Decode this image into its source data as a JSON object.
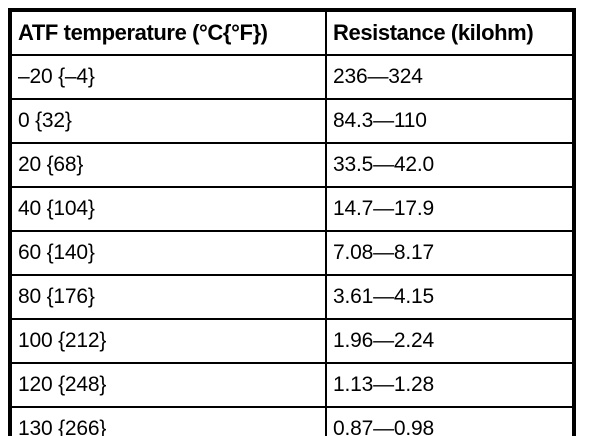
{
  "page": {
    "background_color": "#ffffff",
    "border_color": "#000000",
    "text_color": "#000000"
  },
  "table": {
    "header": {
      "temperature": "ATF temperature (°C{°F})",
      "resistance": "Resistance (kilohm)"
    },
    "rows": [
      {
        "temperature": "–20 {–4}",
        "resistance": "236—324"
      },
      {
        "temperature": "0 {32}",
        "resistance": "84.3—110"
      },
      {
        "temperature": "20 {68}",
        "resistance": "33.5—42.0"
      },
      {
        "temperature": "40 {104}",
        "resistance": "14.7—17.9"
      },
      {
        "temperature": "60 {140}",
        "resistance": "7.08—8.17"
      },
      {
        "temperature": "80 {176}",
        "resistance": "3.61—4.15"
      },
      {
        "temperature": "100 {212}",
        "resistance": "1.96—2.24"
      },
      {
        "temperature": "120 {248}",
        "resistance": "1.13—1.28"
      },
      {
        "temperature": "130 {266}",
        "resistance": "0.87—0.98"
      }
    ]
  }
}
